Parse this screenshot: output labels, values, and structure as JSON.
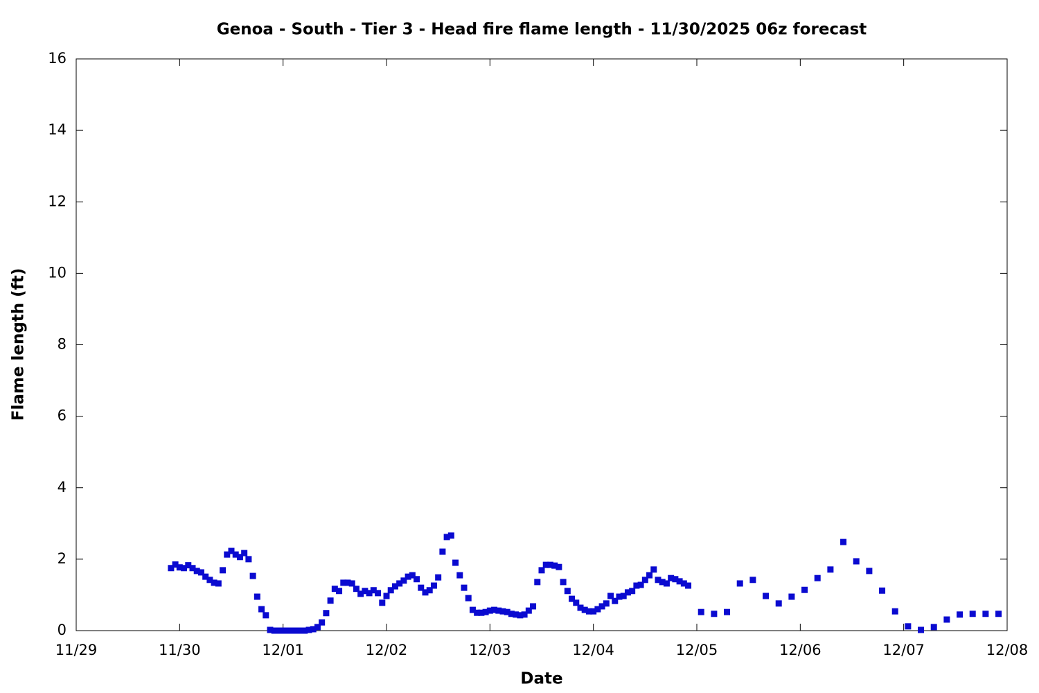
{
  "chart_data": {
    "type": "scatter",
    "title": "Genoa - South - Tier 3 - Head fire flame length - 11/30/2025 06z forecast",
    "xlabel": "Date",
    "ylabel": "Flame length (ft)",
    "xlim": [
      0,
      216
    ],
    "xticks": [
      {
        "value": 0,
        "label": "11/29"
      },
      {
        "value": 24,
        "label": "11/30"
      },
      {
        "value": 48,
        "label": "12/01"
      },
      {
        "value": 72,
        "label": "12/02"
      },
      {
        "value": 96,
        "label": "12/03"
      },
      {
        "value": 120,
        "label": "12/04"
      },
      {
        "value": 144,
        "label": "12/05"
      },
      {
        "value": 168,
        "label": "12/06"
      },
      {
        "value": 192,
        "label": "12/07"
      },
      {
        "value": 216,
        "label": "12/08"
      }
    ],
    "ylim": [
      0,
      16
    ],
    "yticks": [
      0,
      2,
      4,
      6,
      8,
      10,
      12,
      14,
      16
    ],
    "color": "#0a0ad0",
    "x": [
      22,
      23,
      24,
      25,
      26,
      27,
      28,
      29,
      30,
      31,
      32,
      33,
      34,
      35,
      36,
      37,
      38,
      39,
      40,
      41,
      42,
      43,
      44,
      45,
      46,
      47,
      48,
      49,
      50,
      51,
      52,
      53,
      54,
      55,
      56,
      57,
      58,
      59,
      60,
      61,
      62,
      63,
      64,
      65,
      66,
      67,
      68,
      69,
      70,
      71,
      72,
      73,
      74,
      75,
      76,
      77,
      78,
      79,
      80,
      81,
      82,
      83,
      84,
      85,
      86,
      87,
      88,
      89,
      90,
      91,
      92,
      93,
      94,
      95,
      96,
      97,
      98,
      99,
      100,
      101,
      102,
      103,
      104,
      105,
      106,
      107,
      108,
      109,
      110,
      111,
      112,
      113,
      114,
      115,
      116,
      117,
      118,
      119,
      120,
      121,
      122,
      123,
      124,
      125,
      126,
      127,
      128,
      129,
      130,
      131,
      132,
      133,
      134,
      135,
      136,
      137,
      138,
      139,
      140,
      141,
      142,
      145,
      148,
      151,
      154,
      157,
      160,
      163,
      166,
      169,
      172,
      175,
      178,
      181,
      184,
      187,
      190,
      193,
      196,
      199,
      202,
      205,
      208,
      211,
      214
    ],
    "values": [
      1.75,
      1.85,
      1.77,
      1.75,
      1.83,
      1.75,
      1.67,
      1.63,
      1.51,
      1.42,
      1.34,
      1.32,
      1.69,
      2.13,
      2.23,
      2.13,
      2.06,
      2.17,
      2.0,
      1.53,
      0.95,
      0.6,
      0.43,
      0.02,
      0,
      0,
      0,
      0,
      0,
      0,
      0,
      0,
      0.02,
      0.04,
      0.1,
      0.23,
      0.49,
      0.84,
      1.17,
      1.11,
      1.34,
      1.34,
      1.32,
      1.17,
      1.03,
      1.11,
      1.05,
      1.13,
      1.05,
      0.78,
      0.97,
      1.13,
      1.24,
      1.32,
      1.4,
      1.51,
      1.55,
      1.44,
      1.2,
      1.07,
      1.13,
      1.26,
      1.49,
      2.21,
      2.62,
      2.66,
      1.9,
      1.55,
      1.2,
      0.91,
      0.58,
      0.5,
      0.5,
      0.52,
      0.56,
      0.58,
      0.56,
      0.54,
      0.52,
      0.47,
      0.45,
      0.43,
      0.45,
      0.56,
      0.68,
      1.36,
      1.69,
      1.84,
      1.84,
      1.82,
      1.78,
      1.36,
      1.11,
      0.89,
      0.78,
      0.64,
      0.58,
      0.54,
      0.54,
      0.6,
      0.68,
      0.76,
      0.97,
      0.83,
      0.95,
      0.97,
      1.07,
      1.11,
      1.26,
      1.28,
      1.42,
      1.55,
      1.71,
      1.42,
      1.36,
      1.32,
      1.47,
      1.44,
      1.38,
      1.32,
      1.26,
      0.52,
      0.47,
      0.52,
      1.32,
      1.42,
      0.97,
      0.76,
      0.95,
      1.14,
      1.47,
      1.71,
      2.48,
      1.94,
      1.67,
      1.12,
      0.54,
      0.12,
      0.02,
      0.1,
      0.31,
      0.45,
      0.47,
      0.47,
      0.47
    ]
  }
}
